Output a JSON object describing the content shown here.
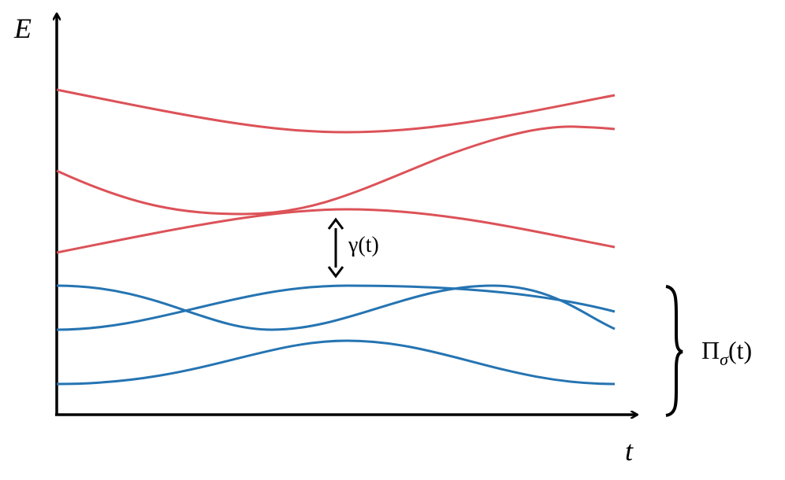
{
  "axes": {
    "y_label": "E",
    "x_label": "t"
  },
  "annotations": {
    "gap": "γ(t)",
    "projection": {
      "base": "Π",
      "subscript": "σ",
      "argument": "(t)"
    }
  }
}
